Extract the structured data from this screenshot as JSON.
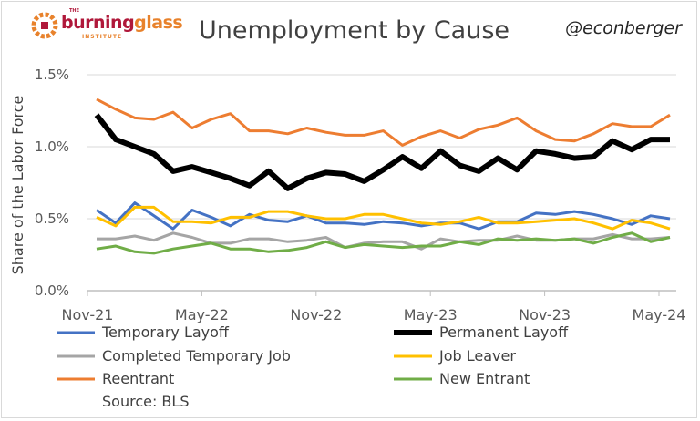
{
  "header": {
    "title": "Unemployment by Cause",
    "handle": "@econberger",
    "logo": {
      "the": "THE",
      "word1": "burning",
      "word2": "glass",
      "sub": "INSTITUTE"
    }
  },
  "chart_data": {
    "type": "line",
    "title": "Unemployment by Cause",
    "ylabel": "Share of the Labor Force",
    "xlabel": "",
    "ylim": [
      0,
      1.5
    ],
    "y_ticks": [
      "0.0%",
      "0.5%",
      "1.0%",
      "1.5%"
    ],
    "y_tick_values": [
      0,
      0.5,
      1.0,
      1.5
    ],
    "x_tick_labels": [
      "Nov-21",
      "May-22",
      "Nov-22",
      "May-23",
      "Nov-23",
      "May-24"
    ],
    "x_start": "Nov-21",
    "x_end": "May-24",
    "frequency": "monthly",
    "grid": "horizontal",
    "legend": "bottom",
    "source": "Source: BLS",
    "series": [
      {
        "name": "Temporary Layoff",
        "color": "#4472C4",
        "values": [
          0.56,
          0.47,
          0.61,
          0.52,
          0.43,
          0.56,
          0.51,
          0.45,
          0.53,
          0.49,
          0.48,
          0.52,
          0.47,
          0.47,
          0.46,
          0.48,
          0.47,
          0.45,
          0.47,
          0.47,
          0.43,
          0.48,
          0.48,
          0.54,
          0.53,
          0.55,
          0.53,
          0.5,
          0.46,
          0.52,
          0.5
        ]
      },
      {
        "name": "Permanent Layoff",
        "color": "#000000",
        "values": [
          1.22,
          1.05,
          1.0,
          0.95,
          0.83,
          0.86,
          0.82,
          0.78,
          0.73,
          0.83,
          0.71,
          0.78,
          0.82,
          0.81,
          0.76,
          0.84,
          0.93,
          0.85,
          0.97,
          0.87,
          0.83,
          0.92,
          0.84,
          0.97,
          0.95,
          0.92,
          0.93,
          1.04,
          0.98,
          1.05,
          1.05
        ]
      },
      {
        "name": "Completed Temporary Job",
        "color": "#A5A5A5",
        "values": [
          0.36,
          0.36,
          0.38,
          0.35,
          0.4,
          0.37,
          0.33,
          0.33,
          0.36,
          0.36,
          0.34,
          0.35,
          0.37,
          0.3,
          0.33,
          0.34,
          0.34,
          0.29,
          0.36,
          0.34,
          0.35,
          0.35,
          0.38,
          0.35,
          0.35,
          0.36,
          0.36,
          0.39,
          0.36,
          0.36,
          0.37
        ]
      },
      {
        "name": "Job Leaver",
        "color": "#FFC000",
        "values": [
          0.51,
          0.45,
          0.58,
          0.58,
          0.48,
          0.48,
          0.47,
          0.51,
          0.51,
          0.55,
          0.55,
          0.52,
          0.5,
          0.5,
          0.53,
          0.53,
          0.5,
          0.47,
          0.46,
          0.48,
          0.51,
          0.47,
          0.47,
          0.48,
          0.49,
          0.5,
          0.47,
          0.43,
          0.49,
          0.47,
          0.43
        ]
      },
      {
        "name": "Reentrant",
        "color": "#ED7D31",
        "values": [
          1.33,
          1.26,
          1.2,
          1.19,
          1.24,
          1.13,
          1.19,
          1.23,
          1.11,
          1.11,
          1.09,
          1.13,
          1.1,
          1.08,
          1.08,
          1.11,
          1.01,
          1.07,
          1.11,
          1.06,
          1.12,
          1.15,
          1.2,
          1.11,
          1.05,
          1.04,
          1.09,
          1.16,
          1.14,
          1.14,
          1.22
        ]
      },
      {
        "name": "New Entrant",
        "color": "#70AD47",
        "values": [
          0.29,
          0.31,
          0.27,
          0.26,
          0.29,
          0.31,
          0.33,
          0.29,
          0.29,
          0.27,
          0.28,
          0.3,
          0.34,
          0.3,
          0.32,
          0.31,
          0.3,
          0.31,
          0.31,
          0.34,
          0.32,
          0.36,
          0.35,
          0.36,
          0.35,
          0.36,
          0.33,
          0.37,
          0.4,
          0.34,
          0.37
        ]
      }
    ]
  }
}
